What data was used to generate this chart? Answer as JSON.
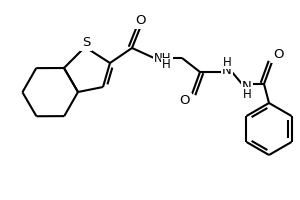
{
  "bg_color": "#ffffff",
  "line_color": "#000000",
  "bond_width": 1.5,
  "font_size": 8.5,
  "figsize": [
    3.0,
    2.0
  ],
  "dpi": 100,
  "xlim": [
    0,
    300
  ],
  "ylim": [
    0,
    200
  ]
}
